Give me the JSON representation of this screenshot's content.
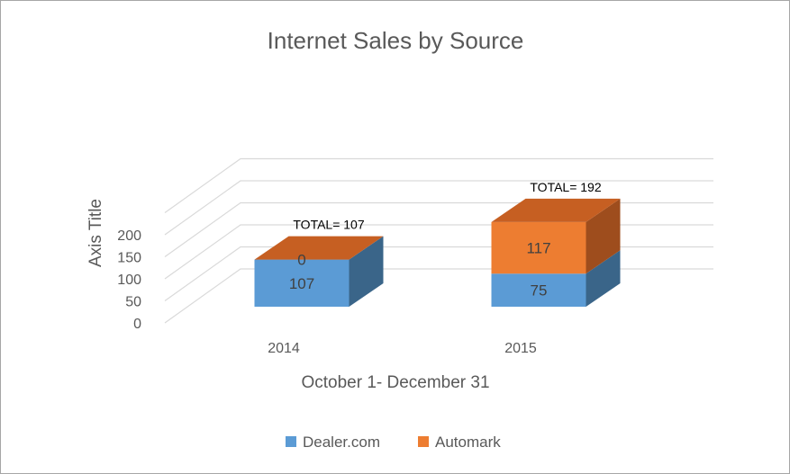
{
  "chart_data": {
    "type": "bar",
    "stacked": true,
    "three_d": true,
    "title": "Internet Sales by Source",
    "xlabel": "October 1- December 31",
    "ylabel": "Axis Title",
    "categories": [
      "2014",
      "2015"
    ],
    "series": [
      {
        "name": "Dealer.com",
        "values": [
          107,
          75
        ],
        "color": "#5b9bd5",
        "side_color": "#3a6589",
        "top_color": "#4c86bd"
      },
      {
        "name": "Automark",
        "values": [
          0,
          117
        ],
        "color": "#ed7d31",
        "side_color": "#9e4d1d",
        "top_color": "#c65f22"
      }
    ],
    "data_labels": [
      [
        "107",
        "75"
      ],
      [
        "0",
        "117"
      ]
    ],
    "total_labels": [
      "TOTAL= 107",
      "TOTAL= 192"
    ],
    "yticks": [
      "0",
      "50",
      "100",
      "150",
      "200"
    ],
    "ylim": [
      0,
      250
    ],
    "grid": true,
    "legend_position": "bottom"
  }
}
